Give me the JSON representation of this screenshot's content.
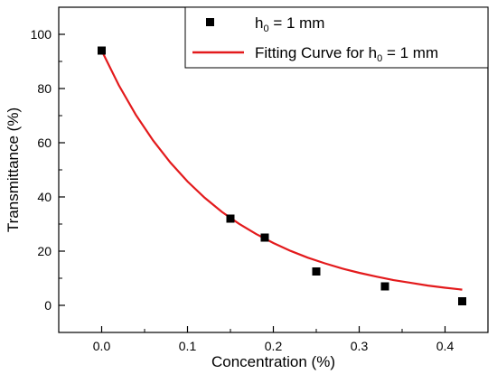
{
  "chart_data": {
    "type": "scatter",
    "xlabel": "Concentration (%)",
    "ylabel": "Transmittance (%)",
    "xlim": [
      -0.05,
      0.45
    ],
    "ylim": [
      -10,
      110
    ],
    "x_ticks": [
      "0.0",
      "0.1",
      "0.2",
      "0.3",
      "0.4"
    ],
    "x_tick_values": [
      0.0,
      0.1,
      0.2,
      0.3,
      0.4
    ],
    "y_ticks": [
      "0",
      "20",
      "40",
      "60",
      "80",
      "100"
    ],
    "y_tick_values": [
      0,
      20,
      40,
      60,
      80,
      100
    ],
    "grid": false,
    "legend_position": "top-right",
    "series": [
      {
        "name": "h0 = 1 mm",
        "kind": "scatter",
        "color": "#000000",
        "x": [
          0.0,
          0.15,
          0.19,
          0.25,
          0.33,
          0.42
        ],
        "y": [
          94,
          32,
          25,
          12.5,
          7,
          1.5
        ]
      },
      {
        "name": "Fitting Curve for h0 = 1 mm",
        "kind": "line",
        "color": "#e31a1c",
        "x": [
          0.0,
          0.02,
          0.04,
          0.06,
          0.08,
          0.1,
          0.12,
          0.14,
          0.16,
          0.18,
          0.2,
          0.22,
          0.24,
          0.26,
          0.28,
          0.3,
          0.32,
          0.34,
          0.36,
          0.38,
          0.4,
          0.42
        ],
        "y": [
          94.0,
          81.2,
          70.2,
          60.8,
          52.7,
          45.7,
          39.7,
          34.5,
          30.1,
          26.3,
          23.0,
          20.1,
          17.6,
          15.5,
          13.6,
          12.0,
          10.6,
          9.3,
          8.3,
          7.3,
          6.5,
          5.8
        ]
      }
    ],
    "legend": {
      "marker_label_main": "h",
      "marker_label_sub": "0",
      "marker_label_rest": " = 1 mm",
      "line_label_main": "Fitting Curve for h",
      "line_label_sub": "0",
      "line_label_rest": " = 1 mm"
    }
  }
}
